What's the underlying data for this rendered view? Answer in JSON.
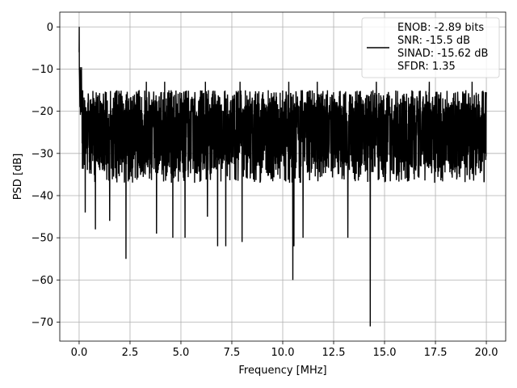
{
  "chart_data": {
    "type": "line",
    "title": "",
    "xlabel": "Frequency [MHz]",
    "ylabel": "PSD [dB]",
    "xlim": [
      -0.95,
      20.95
    ],
    "ylim": [
      -74.5,
      3.5
    ],
    "xticks": [
      0.0,
      2.5,
      5.0,
      7.5,
      10.0,
      12.5,
      15.0,
      17.5,
      20.0
    ],
    "xtick_labels": [
      "0.0",
      "2.5",
      "5.0",
      "7.5",
      "10.0",
      "12.5",
      "15.0",
      "17.5",
      "20.0"
    ],
    "yticks": [
      0,
      -10,
      -20,
      -30,
      -40,
      -50,
      -60,
      -70
    ],
    "ytick_labels": [
      "0",
      "−10",
      "−20",
      "−30",
      "−40",
      "−50",
      "−60",
      "−70"
    ],
    "grid": true,
    "legend_position": "top-right",
    "series": [
      {
        "name": "",
        "color": "#000000",
        "noise_floor_db": -26,
        "noise_band_db": [
          -37,
          -15
        ],
        "peak": {
          "x": 0.0,
          "y": 0
        },
        "dips": [
          {
            "x": 0.3,
            "y": -44
          },
          {
            "x": 0.8,
            "y": -48
          },
          {
            "x": 1.5,
            "y": -46
          },
          {
            "x": 2.3,
            "y": -55
          },
          {
            "x": 3.8,
            "y": -49
          },
          {
            "x": 4.6,
            "y": -50
          },
          {
            "x": 5.2,
            "y": -50
          },
          {
            "x": 6.3,
            "y": -45
          },
          {
            "x": 6.8,
            "y": -52
          },
          {
            "x": 7.2,
            "y": -52
          },
          {
            "x": 8.0,
            "y": -51
          },
          {
            "x": 10.5,
            "y": -60
          },
          {
            "x": 10.55,
            "y": -52
          },
          {
            "x": 11.0,
            "y": -50
          },
          {
            "x": 13.2,
            "y": -50
          },
          {
            "x": 14.3,
            "y": -71
          }
        ],
        "peaks": [
          {
            "x": 3.3,
            "y": -13
          },
          {
            "x": 4.2,
            "y": -13
          },
          {
            "x": 6.2,
            "y": -13
          },
          {
            "x": 7.9,
            "y": -13
          },
          {
            "x": 10.3,
            "y": -13
          },
          {
            "x": 11.7,
            "y": -13
          },
          {
            "x": 14.6,
            "y": -13
          },
          {
            "x": 17.2,
            "y": -13
          },
          {
            "x": 19.3,
            "y": -13
          }
        ]
      }
    ],
    "legend_entries": [
      "ENOB: -2.89 bits",
      "SNR: -15.5 dB",
      "SINAD: -15.62 dB",
      "SFDR: 1.35"
    ]
  }
}
